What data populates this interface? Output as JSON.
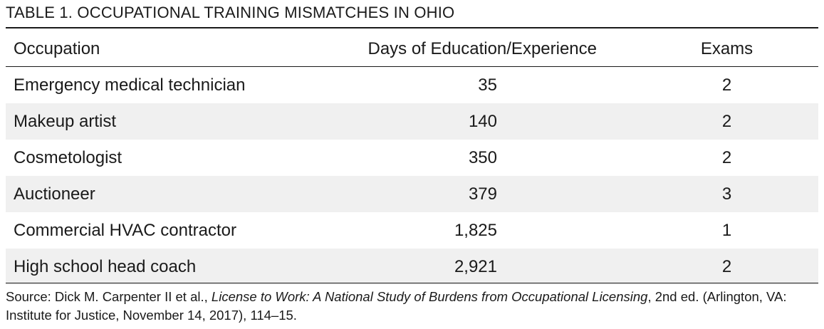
{
  "title": "TABLE 1. OCCUPATIONAL TRAINING MISMATCHES IN OHIO",
  "columns": {
    "occupation": "Occupation",
    "days": "Days of Education/Experience",
    "exams": "Exams"
  },
  "rows": [
    {
      "occupation": "Emergency medical technician",
      "days": "35",
      "exams": "2"
    },
    {
      "occupation": "Makeup artist",
      "days": "140",
      "exams": "2"
    },
    {
      "occupation": "Cosmetologist",
      "days": "350",
      "exams": "2"
    },
    {
      "occupation": "Auctioneer",
      "days": "379",
      "exams": "3"
    },
    {
      "occupation": "Commercial HVAC contractor",
      "days": "1,825",
      "exams": "1"
    },
    {
      "occupation": "High school head coach",
      "days": "2,921",
      "exams": "2"
    }
  ],
  "source": {
    "prefix": "Source: Dick M. Carpenter II et al., ",
    "book": "License to Work: A National Study of Burdens from Occupational Licensing",
    "suffix": ", 2nd ed. (Arlington, VA: Institute for Justice, November 14, 2017), 114–15."
  }
}
